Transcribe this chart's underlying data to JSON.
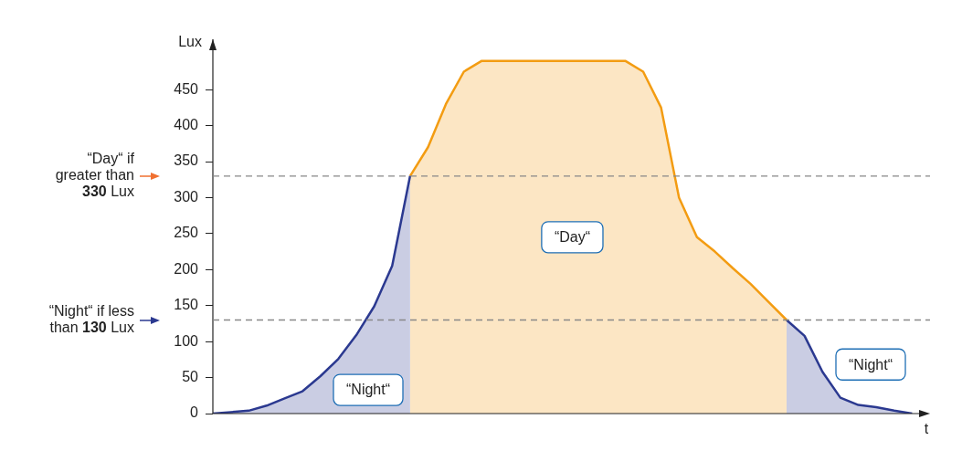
{
  "chart_data": {
    "type": "area",
    "ylabel": "Lux",
    "xlabel": "t",
    "ylim": [
      0,
      520
    ],
    "yticks": [
      0,
      50,
      100,
      150,
      200,
      250,
      300,
      350,
      400,
      450
    ],
    "tick_labels": "y",
    "grid": false,
    "legend": false,
    "categories": [
      null,
      null,
      null,
      null,
      null,
      null,
      null,
      null,
      null,
      null,
      null,
      null,
      null,
      null,
      null,
      null,
      null,
      null,
      null,
      null,
      null,
      null,
      null,
      null,
      null,
      null,
      null,
      null,
      null,
      null,
      null,
      null,
      null,
      null,
      null,
      null,
      null,
      null,
      null,
      null,
      null
    ],
    "series": [
      {
        "color": "#2b3990",
        "values": [
          0,
          2,
          4,
          11,
          21,
          31,
          52,
          76,
          109,
          149,
          205,
          330,
          null,
          null,
          null,
          null,
          null,
          null,
          null,
          null,
          null,
          null,
          null,
          null,
          null,
          null,
          null,
          null,
          null,
          null,
          null,
          null,
          null,
          null,
          null,
          null,
          null,
          null,
          null,
          null,
          null
        ]
      },
      {
        "color": "#f39c12",
        "values": [
          null,
          null,
          null,
          null,
          null,
          null,
          null,
          null,
          null,
          null,
          null,
          330,
          370,
          430,
          475,
          490,
          490,
          490,
          490,
          490,
          490,
          490,
          490,
          490,
          475,
          425,
          300,
          245,
          225,
          202,
          180,
          155,
          130,
          null,
          null,
          null,
          null,
          null,
          null,
          null,
          null
        ]
      },
      {
        "color": "#2b3990",
        "values": [
          null,
          null,
          null,
          null,
          null,
          null,
          null,
          null,
          null,
          null,
          null,
          null,
          null,
          null,
          null,
          null,
          null,
          null,
          null,
          null,
          null,
          null,
          null,
          null,
          null,
          null,
          null,
          null,
          null,
          null,
          null,
          null,
          130,
          108,
          58,
          22,
          12,
          9,
          4,
          0,
          null
        ]
      }
    ],
    "ref_lines": [
      {
        "axis": "y",
        "value": 330,
        "label": "“Day“ if greater than 330 Lux",
        "color": "#888888",
        "line_style": "dashed"
      },
      {
        "axis": "y",
        "value": 130,
        "label": "“Night“ if less than 130 Lux",
        "color": "#888888",
        "line_style": "dashed"
      }
    ],
    "annotations": [
      "“Night“",
      "“Day“",
      "“Night“"
    ]
  }
}
